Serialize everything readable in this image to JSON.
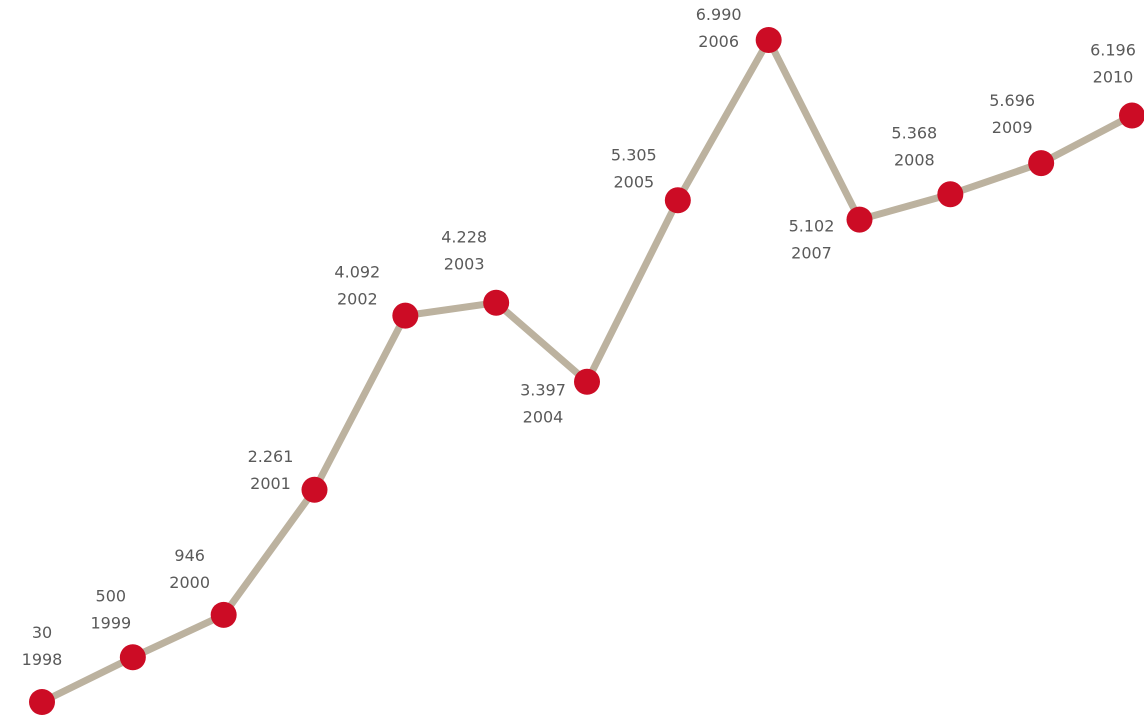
{
  "chart_data": {
    "type": "line",
    "title": "",
    "xlabel": "",
    "ylabel": "",
    "x": [
      "1998",
      "1999",
      "2000",
      "2001",
      "2002",
      "2003",
      "2004",
      "2005",
      "2006",
      "2007",
      "2008",
      "2009",
      "2010"
    ],
    "value_labels": [
      "30",
      "500",
      "946",
      "2.261",
      "4.092",
      "4.228",
      "3.397",
      "5.305",
      "6.990",
      "5.102",
      "5.368",
      "5.696",
      "6.196"
    ],
    "series": [
      {
        "values": [
          30,
          500,
          946,
          2261,
          4092,
          4228,
          3397,
          5305,
          6990,
          5102,
          5368,
          5696,
          6196
        ]
      }
    ],
    "axes_visible": false,
    "grid": false,
    "legend": "none",
    "colors": {
      "line": "#bcb29f",
      "marker": "#cc0c25",
      "label_text": "#5a5a5a"
    }
  }
}
